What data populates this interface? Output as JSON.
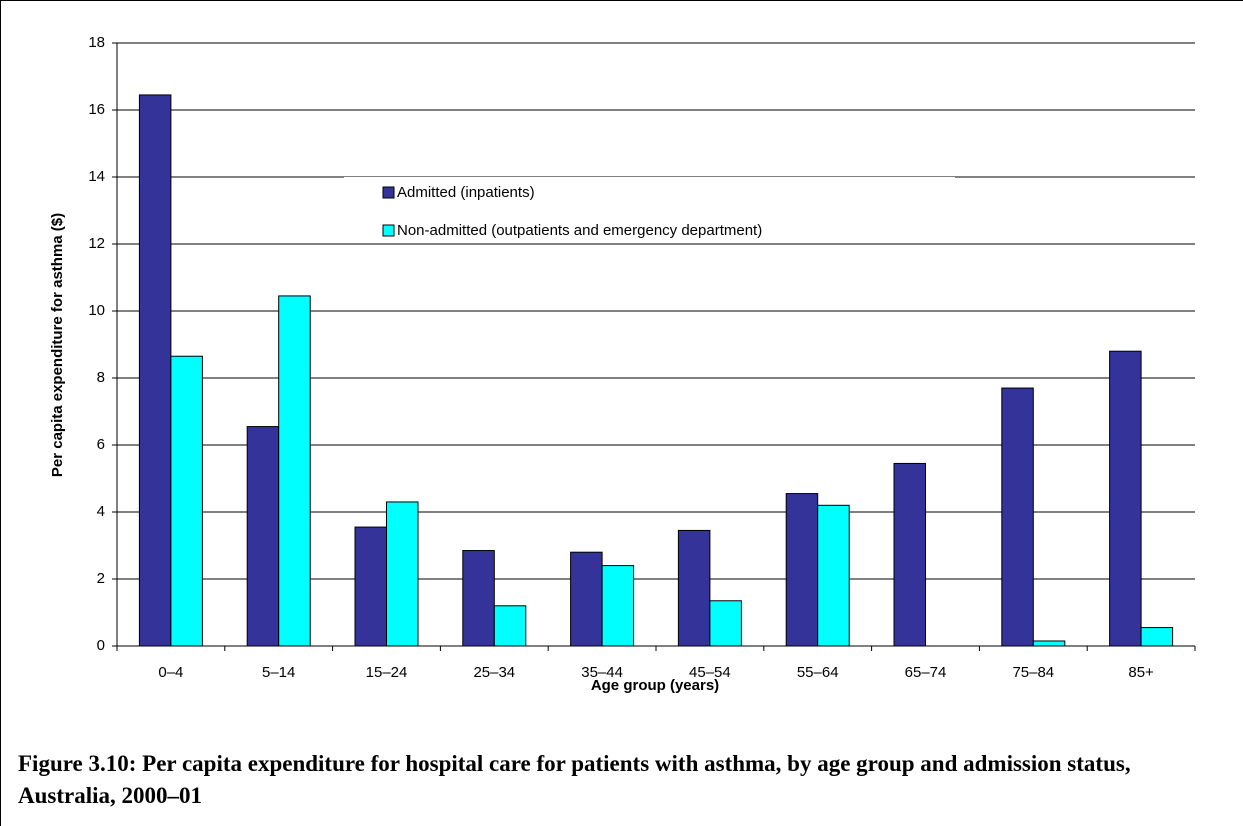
{
  "chart_data": {
    "type": "bar",
    "caption": "Figure 3.10: Per capita expenditure for hospital care for patients with asthma, by age group and admission status, Australia, 2000–01",
    "x_label": "Age group (years)",
    "y_label": "Per capita expenditure for asthma ($)",
    "categories": [
      "0–4",
      "5–14",
      "15–24",
      "25–34",
      "35–44",
      "45–54",
      "55–64",
      "65–74",
      "75–84",
      "85+"
    ],
    "series": [
      {
        "name": "Admitted (inpatients)",
        "color": "#333399",
        "values": [
          16.45,
          6.55,
          3.55,
          2.85,
          2.8,
          3.45,
          4.55,
          5.45,
          7.7,
          8.8
        ]
      },
      {
        "name": "Non-admitted (outpatients and emergency department)",
        "color": "#00ffff",
        "values": [
          8.65,
          10.45,
          4.3,
          1.2,
          2.4,
          1.35,
          4.2,
          null,
          0.15,
          0.55
        ]
      }
    ],
    "ylim": [
      0,
      18
    ],
    "yticks": [
      0,
      2,
      4,
      6,
      8,
      10,
      12,
      14,
      16,
      18
    ],
    "grid": true
  }
}
